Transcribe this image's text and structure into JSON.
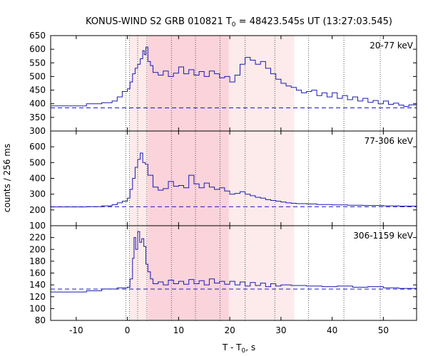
{
  "chart_data": {
    "type": "line",
    "title_main": "KONUS-WIND S2 GRB 010821 T",
    "title_sub": "0",
    "title_rest": " = 48423.545s UT (13:27:03.545)",
    "xlabel_main": "T - T",
    "xlabel_sub": "0",
    "xlabel_rest": ", s",
    "ylabel": "counts / 256 ms",
    "xlim": [
      -15,
      56.5
    ],
    "x_ticks": [
      -10,
      0,
      10,
      20,
      30,
      40,
      50
    ],
    "colors": {
      "series": "#1a1ab4",
      "background_line": "#1a1ab4",
      "shade_light": "#fdeaea",
      "shade_dark": "#fbd3da",
      "vlines": "#555555"
    },
    "shaded_regions": [
      {
        "x0": 0.5,
        "x1": 32.6,
        "intensity": "light"
      },
      {
        "x0": 4.0,
        "x1": 19.8,
        "intensity": "dark"
      }
    ],
    "vertical_lines": [
      -0.3,
      0.4,
      2.0,
      3.8,
      8.6,
      13.3,
      18.1,
      23.0,
      28.8,
      35.4,
      42.3,
      49.4
    ],
    "panels": [
      {
        "label": "20-77 keV",
        "ylim": [
          300,
          650
        ],
        "y_ticks": [
          300,
          350,
          400,
          450,
          500,
          550,
          600,
          650
        ],
        "background_level": 385,
        "points": [
          [
            -15,
            392
          ],
          [
            -8,
            400
          ],
          [
            -5,
            404
          ],
          [
            -3,
            410
          ],
          [
            -2,
            425
          ],
          [
            -1,
            445
          ],
          [
            0,
            455
          ],
          [
            0.5,
            480
          ],
          [
            1,
            510
          ],
          [
            1.5,
            530
          ],
          [
            2,
            545
          ],
          [
            2.5,
            565
          ],
          [
            3,
            595
          ],
          [
            3.3,
            580
          ],
          [
            3.6,
            608
          ],
          [
            4,
            555
          ],
          [
            4.5,
            540
          ],
          [
            5,
            515
          ],
          [
            6,
            505
          ],
          [
            7,
            520
          ],
          [
            8,
            500
          ],
          [
            9,
            512
          ],
          [
            10,
            535
          ],
          [
            11,
            510
          ],
          [
            12,
            525
          ],
          [
            13,
            505
          ],
          [
            14,
            518
          ],
          [
            15,
            500
          ],
          [
            16,
            520
          ],
          [
            17,
            510
          ],
          [
            18,
            495
          ],
          [
            19,
            500
          ],
          [
            20,
            480
          ],
          [
            21,
            505
          ],
          [
            22,
            545
          ],
          [
            23,
            570
          ],
          [
            24,
            560
          ],
          [
            25,
            545
          ],
          [
            26,
            555
          ],
          [
            27,
            530
          ],
          [
            28,
            510
          ],
          [
            29,
            490
          ],
          [
            30,
            475
          ],
          [
            31,
            465
          ],
          [
            32,
            460
          ],
          [
            33,
            450
          ],
          [
            34,
            440
          ],
          [
            35,
            445
          ],
          [
            36,
            450
          ],
          [
            37,
            430
          ],
          [
            38,
            440
          ],
          [
            39,
            425
          ],
          [
            40,
            440
          ],
          [
            41,
            420
          ],
          [
            42,
            430
          ],
          [
            43,
            415
          ],
          [
            44,
            425
          ],
          [
            45,
            410
          ],
          [
            46,
            420
          ],
          [
            47,
            405
          ],
          [
            48,
            412
          ],
          [
            49,
            400
          ],
          [
            50,
            410
          ],
          [
            51,
            398
          ],
          [
            52,
            402
          ],
          [
            53,
            395
          ],
          [
            54,
            390
          ],
          [
            55,
            396
          ],
          [
            56.5,
            393
          ]
        ]
      },
      {
        "label": "77-306 keV",
        "ylim": [
          100,
          700
        ],
        "y_ticks": [
          100,
          200,
          300,
          400,
          500,
          600
        ],
        "background_level": 220,
        "points": [
          [
            -15,
            219
          ],
          [
            -8,
            221
          ],
          [
            -5,
            226
          ],
          [
            -3,
            233
          ],
          [
            -2,
            245
          ],
          [
            -1,
            255
          ],
          [
            0,
            275
          ],
          [
            0.5,
            330
          ],
          [
            1,
            400
          ],
          [
            1.5,
            470
          ],
          [
            2,
            520
          ],
          [
            2.5,
            560
          ],
          [
            3,
            500
          ],
          [
            3.5,
            490
          ],
          [
            4,
            420
          ],
          [
            5,
            345
          ],
          [
            6,
            325
          ],
          [
            7,
            335
          ],
          [
            8,
            380
          ],
          [
            9,
            350
          ],
          [
            10,
            355
          ],
          [
            11,
            340
          ],
          [
            12,
            420
          ],
          [
            13,
            365
          ],
          [
            14,
            340
          ],
          [
            15,
            370
          ],
          [
            16,
            345
          ],
          [
            17,
            330
          ],
          [
            18,
            340
          ],
          [
            19,
            320
          ],
          [
            20,
            300
          ],
          [
            21,
            305
          ],
          [
            22,
            315
          ],
          [
            23,
            300
          ],
          [
            24,
            290
          ],
          [
            25,
            280
          ],
          [
            26,
            275
          ],
          [
            27,
            265
          ],
          [
            28,
            260
          ],
          [
            29,
            255
          ],
          [
            30,
            250
          ],
          [
            31,
            245
          ],
          [
            32,
            242
          ],
          [
            33,
            240
          ],
          [
            35,
            238
          ],
          [
            37,
            234
          ],
          [
            40,
            232
          ],
          [
            43,
            230
          ],
          [
            46,
            228
          ],
          [
            50,
            226
          ],
          [
            53,
            224
          ],
          [
            56.5,
            222
          ]
        ]
      },
      {
        "label": "306-1159 keV",
        "ylim": [
          80,
          240
        ],
        "y_ticks": [
          80,
          100,
          120,
          140,
          160,
          180,
          200,
          220
        ],
        "background_level": 133,
        "points": [
          [
            -15,
            128
          ],
          [
            -8,
            130
          ],
          [
            -5,
            133
          ],
          [
            -2,
            135
          ],
          [
            -1,
            135
          ],
          [
            0,
            136
          ],
          [
            0.5,
            150
          ],
          [
            1,
            185
          ],
          [
            1.3,
            220
          ],
          [
            1.6,
            200
          ],
          [
            2,
            230
          ],
          [
            2.4,
            212
          ],
          [
            2.8,
            218
          ],
          [
            3.2,
            205
          ],
          [
            3.6,
            175
          ],
          [
            4,
            162
          ],
          [
            4.5,
            150
          ],
          [
            5,
            142
          ],
          [
            6,
            145
          ],
          [
            7,
            140
          ],
          [
            8,
            148
          ],
          [
            9,
            142
          ],
          [
            10,
            146
          ],
          [
            11,
            141
          ],
          [
            12,
            149
          ],
          [
            13,
            142
          ],
          [
            14,
            147
          ],
          [
            15,
            140
          ],
          [
            16,
            150
          ],
          [
            17,
            143
          ],
          [
            18,
            146
          ],
          [
            19,
            141
          ],
          [
            20,
            146
          ],
          [
            21,
            140
          ],
          [
            22,
            145
          ],
          [
            23,
            138
          ],
          [
            24,
            144
          ],
          [
            25,
            139
          ],
          [
            26,
            143
          ],
          [
            27,
            137
          ],
          [
            28,
            142
          ],
          [
            29,
            138
          ],
          [
            30,
            140
          ],
          [
            32,
            139
          ],
          [
            35,
            138
          ],
          [
            38,
            137
          ],
          [
            41,
            138
          ],
          [
            44,
            136
          ],
          [
            47,
            137
          ],
          [
            50,
            135
          ],
          [
            53,
            134
          ],
          [
            56.5,
            133
          ]
        ]
      }
    ]
  }
}
